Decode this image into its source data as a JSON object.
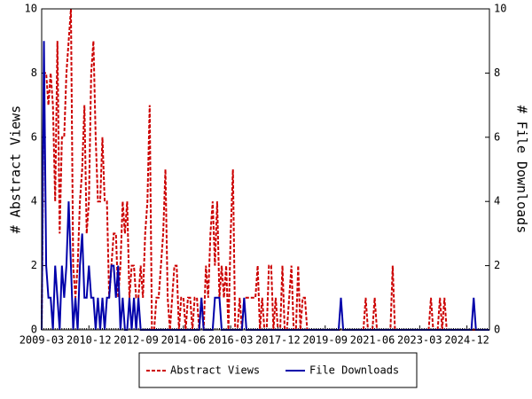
{
  "chart_data": {
    "type": "line",
    "ylabel": "# Abstract Views",
    "y2label": "# File Downloads",
    "categories": [
      "2009-03",
      null,
      null,
      null,
      null,
      null,
      null,
      null,
      null,
      null,
      null,
      null,
      null,
      null,
      null,
      null,
      null,
      null,
      null,
      null,
      null,
      "2010-12",
      null,
      null,
      null,
      null,
      null,
      null,
      null,
      null,
      null,
      null,
      null,
      null,
      null,
      null,
      null,
      null,
      null,
      null,
      null,
      null,
      "2012-09",
      null,
      null,
      null,
      null,
      null,
      null,
      null,
      null,
      null,
      null,
      null,
      null,
      null,
      null,
      null,
      null,
      null,
      null,
      null,
      null,
      "2014-06",
      null,
      null,
      null,
      null,
      null,
      null,
      null,
      null,
      null,
      null,
      null,
      null,
      null,
      null,
      null,
      null,
      null,
      null,
      null,
      null,
      "2016-03",
      null,
      null,
      null,
      null,
      null,
      null,
      null,
      null,
      null,
      null,
      null,
      null,
      null,
      null,
      null,
      null,
      null,
      null,
      null,
      null,
      "2017-12",
      null,
      null,
      null,
      null,
      null,
      null,
      null,
      null,
      null,
      null,
      null,
      null,
      null,
      null,
      null,
      null,
      null,
      null,
      null,
      null,
      "2019-09",
      null,
      null,
      null,
      null,
      null,
      null,
      null,
      null,
      null,
      null,
      null,
      null,
      null,
      null,
      null,
      null,
      null,
      null,
      null,
      null,
      "2021-06",
      null,
      null,
      null,
      null,
      null,
      null,
      null,
      null,
      null,
      null,
      null,
      null,
      null,
      null,
      null,
      null,
      null,
      null,
      null,
      null,
      "2023-03",
      null,
      null,
      null,
      null,
      null,
      null,
      null,
      null,
      null,
      null,
      null,
      null,
      null,
      null,
      null,
      null,
      null,
      null,
      null,
      null,
      "2024-12",
      null,
      null,
      null,
      null,
      null,
      null,
      null,
      null,
      null,
      null
    ],
    "series": [
      {
        "name": "Abstract Views",
        "color": "#cc0000",
        "dash": true,
        "values": [
          0,
          8,
          8,
          7,
          8,
          7,
          4,
          9,
          3,
          6,
          6,
          8,
          9,
          10,
          2,
          1,
          2,
          4,
          5,
          7,
          3,
          4,
          8,
          9,
          6,
          4,
          4,
          6,
          4,
          4,
          1,
          2,
          3,
          3,
          1,
          2,
          4,
          3,
          4,
          1,
          2,
          2,
          1,
          1,
          2,
          1,
          3,
          4,
          7,
          0,
          0,
          1,
          1,
          2,
          3,
          5,
          1,
          0,
          1,
          2,
          2,
          0,
          1,
          1,
          0,
          1,
          1,
          0,
          1,
          1,
          0,
          1,
          0,
          2,
          1,
          3,
          4,
          2,
          4,
          1,
          2,
          1,
          2,
          0,
          3,
          5,
          0,
          0,
          1,
          0,
          1,
          1,
          1,
          1,
          1,
          1,
          2,
          0,
          1,
          0,
          0,
          2,
          2,
          0,
          1,
          0,
          0,
          2,
          0,
          0,
          1,
          2,
          0,
          0,
          2,
          0,
          1,
          1,
          0,
          0,
          0,
          0,
          0,
          0,
          0,
          0,
          0,
          0,
          0,
          0,
          0,
          0,
          0,
          0,
          0,
          0,
          0,
          0,
          0,
          0,
          0,
          0,
          0,
          0,
          1,
          0,
          0,
          0,
          1,
          0,
          0,
          0,
          0,
          0,
          0,
          0,
          2,
          0,
          0,
          0,
          0,
          0,
          0,
          0,
          0,
          0,
          0,
          0,
          0,
          0,
          0,
          0,
          0,
          1,
          0,
          0,
          0,
          1,
          0,
          1,
          0,
          0,
          0,
          0,
          0,
          0,
          0,
          0,
          0,
          0,
          0,
          0,
          0,
          0,
          0,
          0,
          0,
          0,
          0,
          0
        ]
      },
      {
        "name": "File Downloads",
        "color": "#0000aa",
        "axis": "y2",
        "values": [
          0,
          9,
          2,
          1,
          1,
          0,
          2,
          1,
          0,
          2,
          1,
          2,
          4,
          2,
          0,
          1,
          0,
          2,
          3,
          1,
          1,
          2,
          1,
          1,
          0,
          1,
          0,
          1,
          0,
          1,
          1,
          2,
          2,
          1,
          2,
          0,
          1,
          0,
          0,
          1,
          0,
          1,
          0,
          1,
          0,
          0,
          0,
          0,
          0,
          0,
          0,
          0,
          0,
          0,
          0,
          0,
          0,
          0,
          0,
          0,
          0,
          0,
          0,
          0,
          0,
          0,
          0,
          0,
          0,
          0,
          0,
          1,
          0,
          0,
          0,
          0,
          0,
          1,
          1,
          1,
          0,
          0,
          0,
          0,
          0,
          0,
          0,
          0,
          0,
          0,
          1,
          0,
          0,
          0,
          0,
          0,
          0,
          0,
          0,
          0,
          0,
          0,
          0,
          0,
          0,
          0,
          0,
          0,
          0,
          0,
          0,
          0,
          0,
          0,
          0,
          0,
          0,
          0,
          0,
          0,
          0,
          0,
          0,
          0,
          0,
          0,
          0,
          0,
          0,
          0,
          0,
          0,
          0,
          1,
          0,
          0,
          0,
          0,
          0,
          0,
          0,
          0,
          0,
          0,
          0,
          0,
          0,
          0,
          0,
          0,
          0,
          0,
          0,
          0,
          0,
          0,
          0,
          0,
          0,
          0,
          0,
          0,
          0,
          0,
          0,
          0,
          0,
          0,
          0,
          0,
          0,
          0,
          0,
          0,
          0,
          0,
          0,
          0,
          0,
          0,
          0,
          0,
          0,
          0,
          0,
          0,
          0,
          0,
          0,
          0,
          0,
          0,
          1,
          0,
          0,
          0,
          0,
          0,
          0,
          0
        ]
      }
    ],
    "ylim": [
      0,
      10
    ],
    "yticks": [
      0,
      2,
      4,
      6,
      8,
      10
    ],
    "y2lim": [
      0,
      10
    ],
    "y2ticks": [
      0,
      2,
      4,
      6,
      8,
      10
    ],
    "legend": "bottom"
  }
}
